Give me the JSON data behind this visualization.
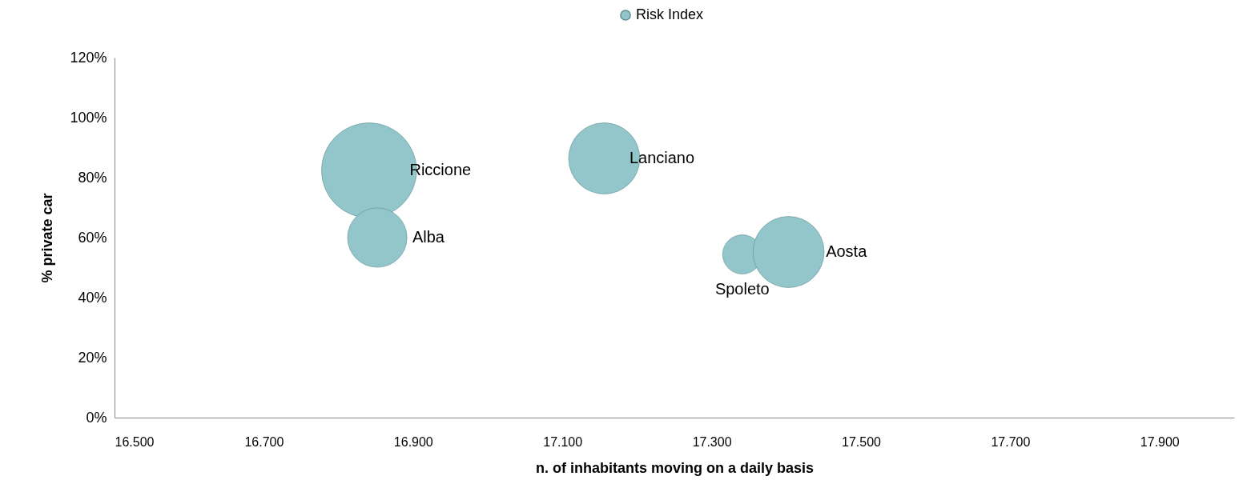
{
  "chart_data": {
    "type": "bubble",
    "xlabel": "n. of inhabitants moving on a daily basis",
    "ylabel": "% private car",
    "x": [
      16841,
      16852,
      17156,
      17341,
      17403
    ],
    "series": [
      {
        "name": "Risk Index",
        "color": "#93c6cb",
        "values": [
          82.4,
          60,
          86.4,
          54.4,
          55.2
        ],
        "sizes": [
          1,
          0.39,
          0.56,
          0.17,
          0.56
        ]
      }
    ],
    "xlim": [
      16500,
      18000
    ],
    "xticks": [
      {
        "value": 16500,
        "label": "16.500"
      },
      {
        "value": 16700,
        "label": "16.700"
      },
      {
        "value": 16900,
        "label": "16.900"
      },
      {
        "value": 17100,
        "label": "17.100"
      },
      {
        "value": 17300,
        "label": "17.300"
      },
      {
        "value": 17500,
        "label": "17.500"
      },
      {
        "value": 17700,
        "label": "17.700"
      },
      {
        "value": 17900,
        "label": "17.900"
      }
    ],
    "ylim": [
      0,
      120
    ],
    "yticks": [
      {
        "value": 0,
        "label": "0%"
      },
      {
        "value": 20,
        "label": "20%"
      },
      {
        "value": 40,
        "label": "40%"
      },
      {
        "value": 60,
        "label": "60%"
      },
      {
        "value": 80,
        "label": "80%"
      },
      {
        "value": 100,
        "label": "100%"
      },
      {
        "value": 120,
        "label": "120%"
      }
    ],
    "annotations": [
      {
        "text": "Riccione",
        "x": 16841,
        "y": 82.4
      },
      {
        "text": "Alba",
        "x": 16852,
        "y": 60
      },
      {
        "text": "Lanciano",
        "x": 17156,
        "y": 86.4
      },
      {
        "text": "Spoleto",
        "x": 17341,
        "y": 54.4
      },
      {
        "text": "Aosta",
        "x": 17403,
        "y": 55.2
      }
    ],
    "legend": "top",
    "grid": false,
    "marker": "circle"
  }
}
